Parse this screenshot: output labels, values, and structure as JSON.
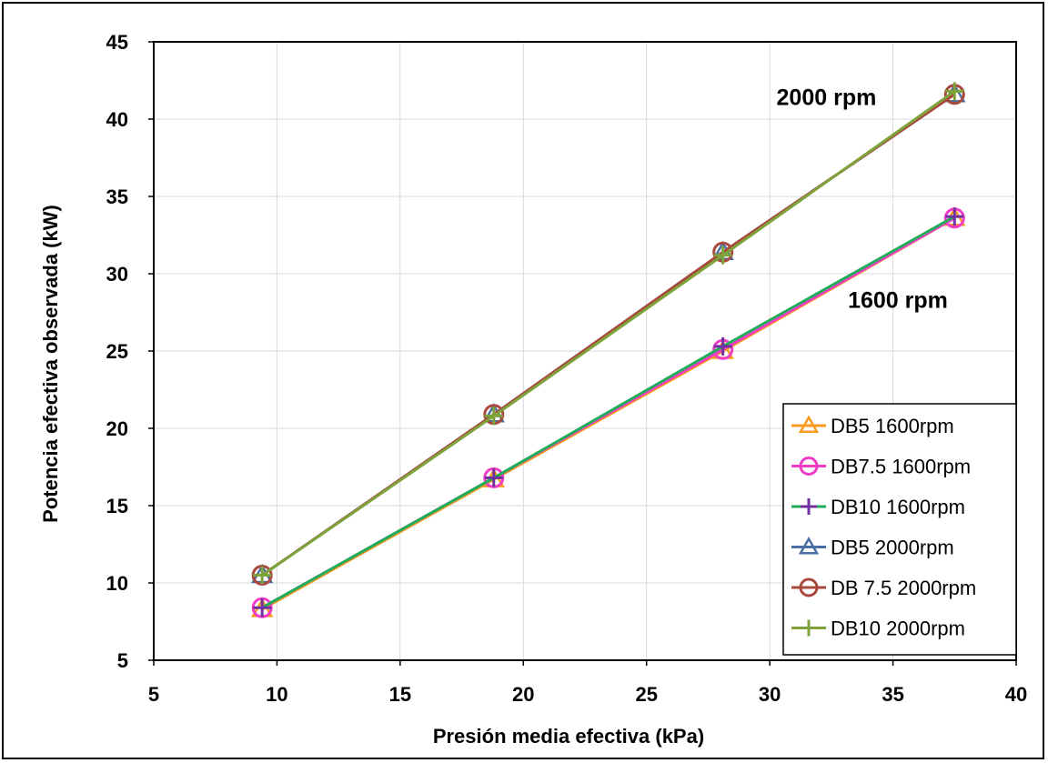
{
  "chart_data": {
    "type": "line",
    "xlabel": "Presión media efectiva (kPa)",
    "ylabel": "Potencia efectiva  observada (kW)",
    "xlim": [
      5,
      40
    ],
    "ylim": [
      5,
      45
    ],
    "xticks": [
      "5",
      "10",
      "15",
      "20",
      "25",
      "30",
      "35",
      "40"
    ],
    "yticks": [
      "5",
      "10",
      "15",
      "20",
      "25",
      "30",
      "35",
      "40",
      "45"
    ],
    "grid": true,
    "legend_position": "bottom-right",
    "annotations": [
      {
        "text": "2000 rpm",
        "x": 32.3,
        "y": 40.9
      },
      {
        "text": "1600 rpm",
        "x": 35.2,
        "y": 27.8
      }
    ],
    "series": [
      {
        "name": "DB5 1600rpm",
        "marker": "triangle",
        "color": "#F79A1E",
        "x": [
          9.4,
          18.8,
          28.1,
          37.5
        ],
        "y": [
          8.3,
          16.7,
          25.0,
          33.6
        ]
      },
      {
        "name": "DB7.5 1600rpm",
        "marker": "circle",
        "color": "#F23CC8",
        "x": [
          9.4,
          18.8,
          28.1,
          37.5
        ],
        "y": [
          8.4,
          16.8,
          25.1,
          33.6
        ]
      },
      {
        "name": "DB10 1600rpm",
        "marker": "plus",
        "color": "#7030A0",
        "line_color": "#1FAD5A",
        "x": [
          9.4,
          18.8,
          28.1,
          37.5
        ],
        "y": [
          8.4,
          16.8,
          25.3,
          33.7
        ]
      },
      {
        "name": "DB5 2000rpm",
        "marker": "triangle",
        "color": "#4A6FA5",
        "x": [
          9.4,
          18.8,
          28.1,
          37.5
        ],
        "y": [
          10.5,
          20.9,
          31.4,
          41.6
        ]
      },
      {
        "name": "DB 7.5 2000rpm",
        "marker": "circle",
        "color": "#A9483C",
        "x": [
          9.4,
          18.8,
          28.1,
          37.5
        ],
        "y": [
          10.5,
          20.9,
          31.4,
          41.6
        ]
      },
      {
        "name": "DB10 2000rpm",
        "marker": "plus",
        "color": "#7EA33A",
        "x": [
          9.4,
          18.8,
          28.1,
          37.5
        ],
        "y": [
          10.5,
          20.8,
          31.2,
          41.8
        ]
      }
    ]
  }
}
